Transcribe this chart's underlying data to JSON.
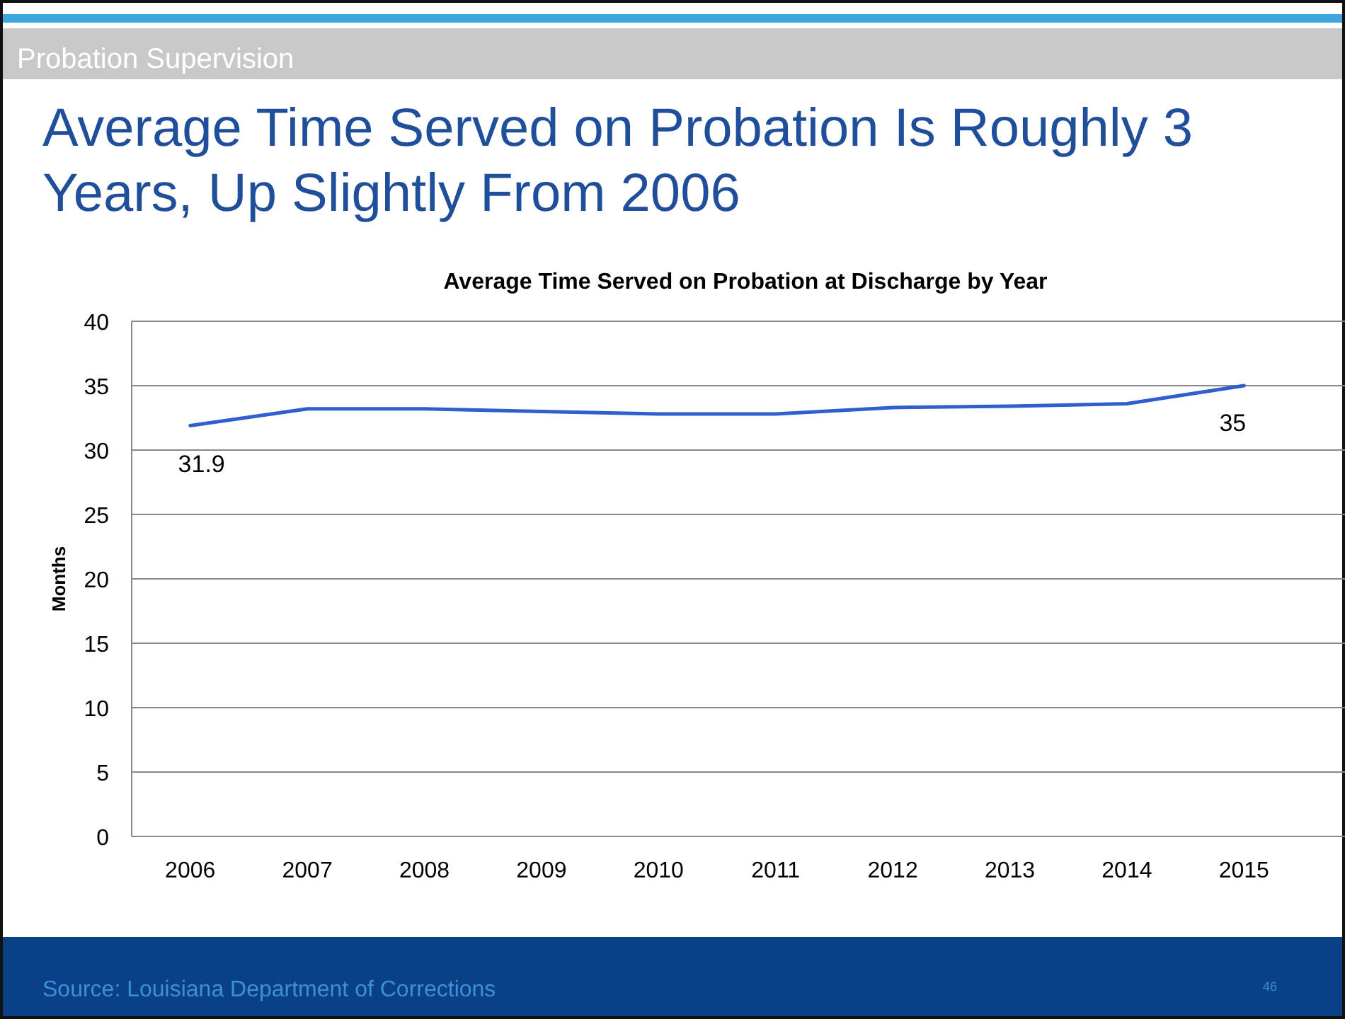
{
  "chart_data": {
    "type": "line",
    "title": "Average Time Served on Probation Is Roughly 3 Years, Up Slightly From 2006",
    "subtitle": "Average Time Served on Probation at Discharge by Year",
    "ylabel": "Months",
    "categories": [
      "2006",
      "2007",
      "2008",
      "2009",
      "2010",
      "2011",
      "2012",
      "2013",
      "2014",
      "2015"
    ],
    "series": [
      {
        "color": "#2f5fcf",
        "values": [
          31.9,
          33.2,
          33.2,
          33.0,
          32.8,
          32.8,
          33.3,
          33.4,
          33.6,
          35
        ],
        "value_labels": [
          "31.9",
          null,
          null,
          null,
          null,
          null,
          null,
          null,
          null,
          "35"
        ]
      }
    ],
    "ylim": [
      0,
      40
    ],
    "yticks": [
      0,
      5,
      10,
      15,
      20,
      25,
      30,
      35,
      40
    ],
    "grid": "y",
    "marker": "none",
    "line_style": "solid",
    "annotations": [
      "Probation Supervision",
      "Source: Louisiana Department of Corrections",
      "46"
    ]
  }
}
